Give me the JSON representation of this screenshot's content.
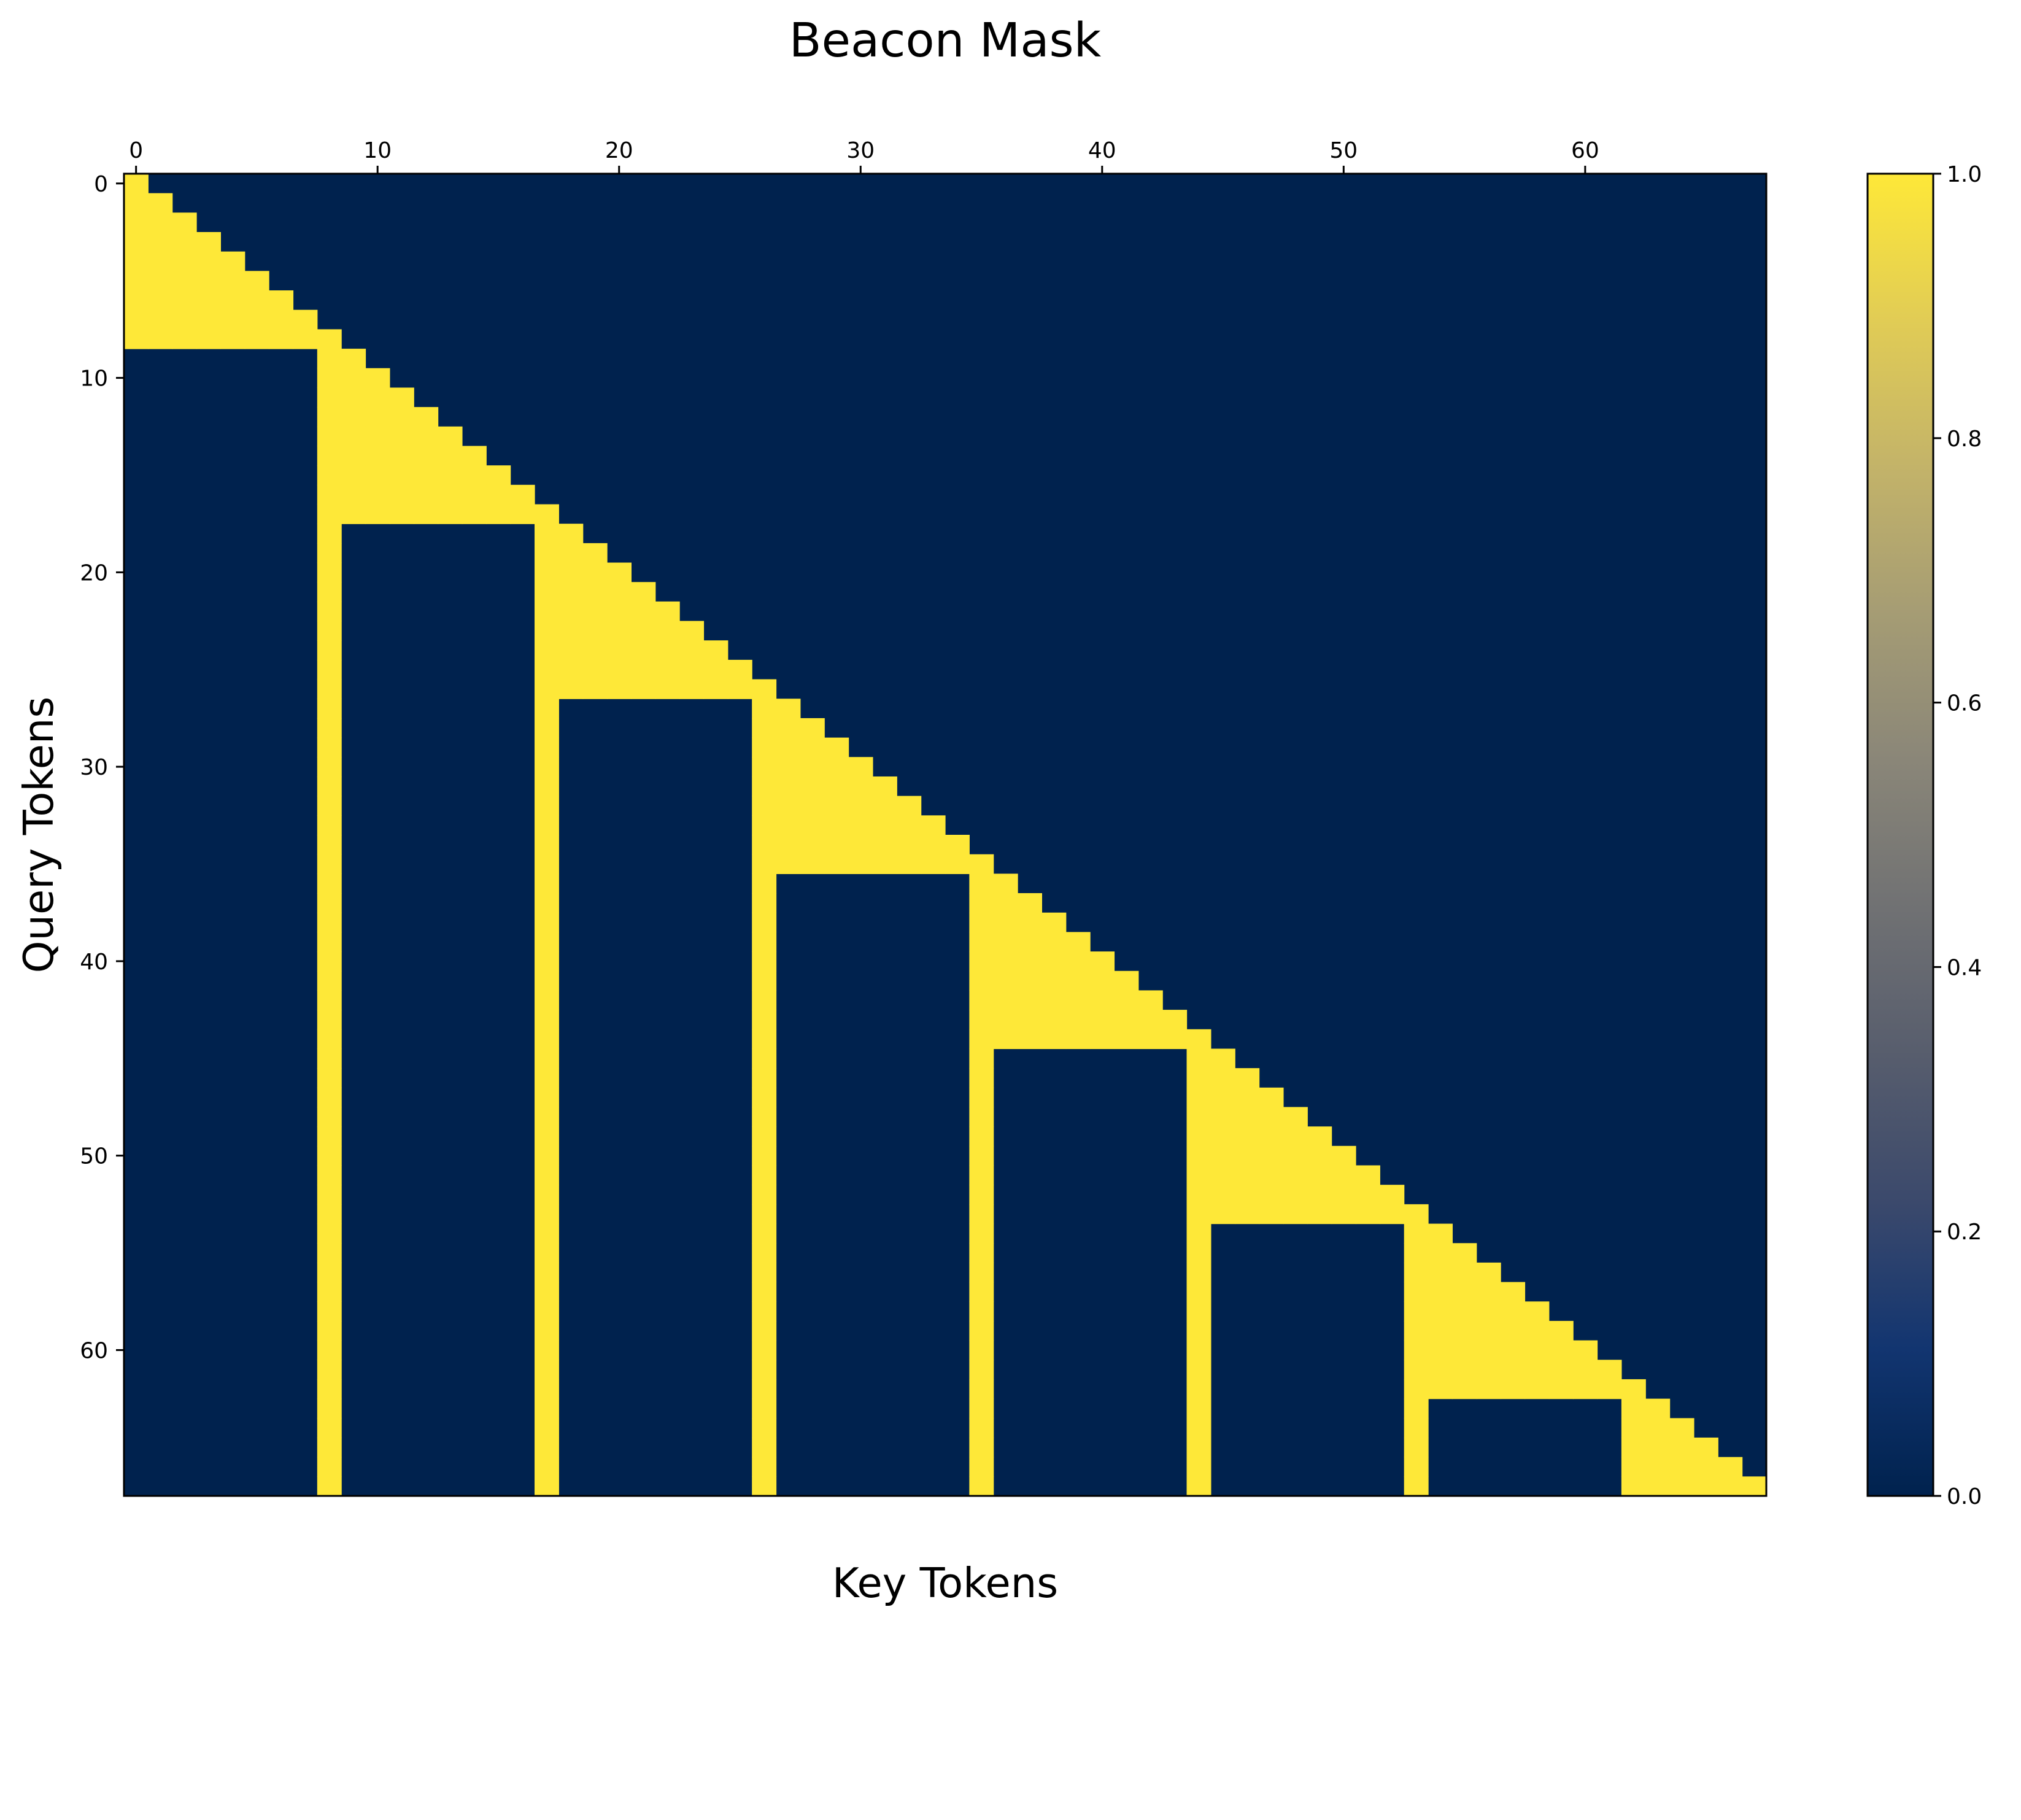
{
  "chart_data": {
    "type": "heatmap",
    "title": "Beacon Mask",
    "xlabel": "Key Tokens",
    "ylabel": "Query Tokens",
    "size": 68,
    "segment_length": 9,
    "rule": "cell[q][k] = 1 if k <= q and (floor(k/9) == floor(q/9) or k % 9 == 8), else 0",
    "x_ticks": [
      0,
      10,
      20,
      30,
      40,
      50,
      60
    ],
    "y_ticks": [
      0,
      10,
      20,
      30,
      40,
      50,
      60
    ],
    "x_tick_position": "top",
    "colormap": "cividis",
    "colors": {
      "low": "#00224e",
      "high": "#fee838"
    },
    "colorbar": {
      "ticks": [
        "0.0",
        "0.2",
        "0.4",
        "0.6",
        "0.8",
        "1.0"
      ],
      "range": [
        0,
        1
      ],
      "stops": [
        "#00224e",
        "#123570",
        "#3b496c",
        "#575d6d",
        "#707173",
        "#8a8678",
        "#a59c74",
        "#c3b369",
        "#e1cc55",
        "#fee838"
      ]
    },
    "grid": false
  }
}
